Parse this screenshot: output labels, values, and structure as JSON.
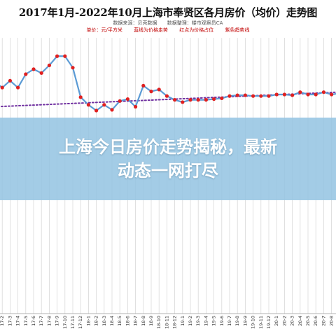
{
  "chart_data": {
    "type": "line",
    "title": "2017年1月-2022年10月上海市奉贤区各月房价（均价）走势图",
    "source": [
      "数据来源：贝壳数据",
      "数据整理：楼市观察员CA"
    ],
    "legend_notes": [
      "单价：元/平方米",
      "蓝线为价格走势",
      "红点为价格占位",
      "紫色趋势线"
    ],
    "x": [
      "17-1",
      "17-2",
      "17-3",
      "17-4",
      "17-5",
      "17-6",
      "17-7",
      "17-8",
      "17-9",
      "17-10",
      "17-11",
      "17-12",
      "18-1",
      "18-2",
      "18-3",
      "18-4",
      "18-5",
      "18-6",
      "18-7",
      "18-8",
      "18-9",
      "18-10",
      "18-11",
      "18-12",
      "19-1",
      "19-2",
      "19-3",
      "19-4",
      "19-5",
      "19-6",
      "19-7",
      "19-8",
      "19-9",
      "19-10",
      "19-11",
      "19-12",
      "20-1",
      "20-2",
      "20-3",
      "20-4",
      "20-5",
      "20-6",
      "20-7",
      "20-8",
      "20-9",
      "20-10",
      "20-11",
      "20-12",
      "21-1",
      "21-2",
      "21-3",
      "21-4",
      "21-5",
      "21-6",
      "21-7",
      "21-8",
      "21-9",
      "21-10",
      "21-11",
      "21-12",
      "22-1",
      "22-2",
      "22-3",
      "22-4",
      "22-5",
      "22-6",
      "22-7",
      "22-8",
      "22-9",
      "22-10"
    ],
    "series": [
      {
        "color": "#5b9bd5",
        "marker_color": "#e02020",
        "values": [
          60.5,
          59.0,
          60.8,
          59.0,
          62.5,
          63.8,
          62.8,
          64.8,
          67.2,
          67.2,
          64.2,
          56.5,
          54.5,
          53.0,
          54.5,
          53.2,
          55.5,
          56.0,
          54.0,
          59.5,
          58.0,
          58.5,
          56.8,
          55.8,
          55.2,
          55.8,
          55.8,
          55.8,
          56.0,
          56.2,
          56.8,
          57.0,
          57.0,
          56.8,
          56.8,
          56.8,
          57.2,
          57.2,
          57.0,
          57.8,
          57.2,
          57.2,
          57.8,
          57.2,
          57.5,
          57.5,
          58.0,
          59.2,
          59.2,
          59.5,
          58.8,
          59.2,
          59.2,
          59.5,
          59.8,
          59.2,
          58.5,
          57.5,
          56.8,
          57.0,
          56.5,
          56.8,
          56.8,
          56.5,
          56.5,
          56.5,
          56.5,
          56.0,
          56.2,
          56.0
        ]
      }
    ],
    "trendline": {
      "color": "#7030a0",
      "style": "dotted",
      "start": 54.0,
      "end": 60.0
    },
    "ylim": [
      0,
      72
    ],
    "grid": "vertical"
  },
  "overlay": {
    "line1": "上海今日房价走势揭秘，最新",
    "line2": "动态一网打尽"
  }
}
